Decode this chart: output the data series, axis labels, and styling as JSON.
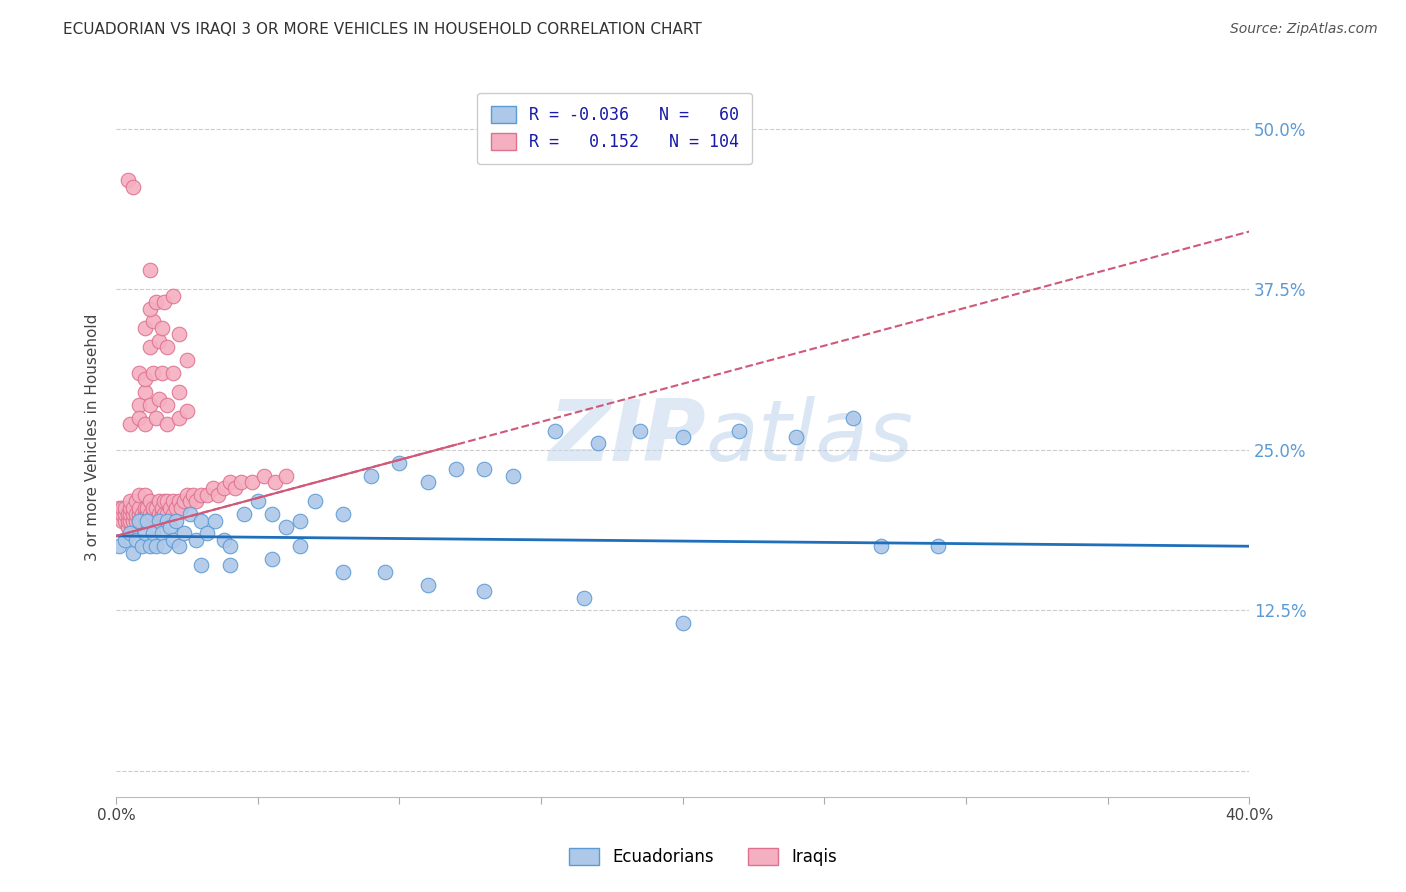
{
  "title": "ECUADORIAN VS IRAQI 3 OR MORE VEHICLES IN HOUSEHOLD CORRELATION CHART",
  "source": "Source: ZipAtlas.com",
  "ylabel": "3 or more Vehicles in Household",
  "xlim": [
    0.0,
    0.4
  ],
  "ylim": [
    -0.02,
    0.54
  ],
  "ytick_vals": [
    0.125,
    0.25,
    0.375,
    0.5
  ],
  "ytick_labels": [
    "12.5%",
    "25.0%",
    "37.5%",
    "50.0%"
  ],
  "watermark": "ZIPatlas",
  "blue_line_color": "#1f6fba",
  "pink_line_color": "#d05878",
  "blue_scatter_color": "#adc8e8",
  "blue_scatter_edge": "#5b9bd5",
  "pink_scatter_color": "#f4b0c0",
  "pink_scatter_edge": "#e07090",
  "ecuadorian_x": [
    0.001,
    0.003,
    0.005,
    0.006,
    0.007,
    0.008,
    0.009,
    0.01,
    0.011,
    0.012,
    0.013,
    0.014,
    0.015,
    0.016,
    0.017,
    0.018,
    0.019,
    0.02,
    0.021,
    0.022,
    0.024,
    0.026,
    0.028,
    0.03,
    0.032,
    0.035,
    0.038,
    0.04,
    0.045,
    0.05,
    0.055,
    0.06,
    0.065,
    0.07,
    0.08,
    0.09,
    0.1,
    0.11,
    0.12,
    0.13,
    0.14,
    0.155,
    0.17,
    0.185,
    0.2,
    0.22,
    0.24,
    0.26,
    0.27,
    0.29,
    0.03,
    0.04,
    0.055,
    0.065,
    0.08,
    0.095,
    0.11,
    0.13,
    0.165,
    0.2
  ],
  "ecuadorian_y": [
    0.175,
    0.18,
    0.185,
    0.17,
    0.18,
    0.195,
    0.175,
    0.185,
    0.195,
    0.175,
    0.185,
    0.175,
    0.195,
    0.185,
    0.175,
    0.195,
    0.19,
    0.18,
    0.195,
    0.175,
    0.185,
    0.2,
    0.18,
    0.195,
    0.185,
    0.195,
    0.18,
    0.175,
    0.2,
    0.21,
    0.2,
    0.19,
    0.195,
    0.21,
    0.2,
    0.23,
    0.24,
    0.225,
    0.235,
    0.235,
    0.23,
    0.265,
    0.255,
    0.265,
    0.26,
    0.265,
    0.26,
    0.275,
    0.175,
    0.175,
    0.16,
    0.16,
    0.165,
    0.175,
    0.155,
    0.155,
    0.145,
    0.14,
    0.135,
    0.115
  ],
  "iraqi_x": [
    0.001,
    0.001,
    0.002,
    0.002,
    0.002,
    0.003,
    0.003,
    0.003,
    0.004,
    0.004,
    0.004,
    0.005,
    0.005,
    0.005,
    0.005,
    0.006,
    0.006,
    0.006,
    0.007,
    0.007,
    0.007,
    0.008,
    0.008,
    0.008,
    0.008,
    0.009,
    0.009,
    0.01,
    0.01,
    0.01,
    0.01,
    0.011,
    0.011,
    0.012,
    0.012,
    0.012,
    0.013,
    0.013,
    0.014,
    0.014,
    0.015,
    0.015,
    0.016,
    0.016,
    0.017,
    0.017,
    0.018,
    0.018,
    0.019,
    0.02,
    0.02,
    0.021,
    0.022,
    0.023,
    0.024,
    0.025,
    0.026,
    0.027,
    0.028,
    0.03,
    0.032,
    0.034,
    0.036,
    0.038,
    0.04,
    0.042,
    0.044,
    0.048,
    0.052,
    0.056,
    0.06,
    0.008,
    0.01,
    0.012,
    0.015,
    0.018,
    0.022,
    0.008,
    0.01,
    0.013,
    0.016,
    0.02,
    0.025,
    0.012,
    0.015,
    0.018,
    0.022,
    0.01,
    0.013,
    0.016,
    0.012,
    0.014,
    0.017,
    0.02,
    0.005,
    0.008,
    0.01,
    0.014,
    0.018,
    0.022,
    0.025,
    0.004,
    0.006,
    0.012
  ],
  "iraqi_y": [
    0.2,
    0.205,
    0.195,
    0.2,
    0.205,
    0.195,
    0.2,
    0.205,
    0.19,
    0.195,
    0.2,
    0.195,
    0.2,
    0.205,
    0.21,
    0.195,
    0.2,
    0.205,
    0.195,
    0.2,
    0.21,
    0.195,
    0.2,
    0.205,
    0.215,
    0.195,
    0.2,
    0.195,
    0.2,
    0.205,
    0.215,
    0.2,
    0.205,
    0.195,
    0.2,
    0.21,
    0.2,
    0.205,
    0.195,
    0.205,
    0.2,
    0.21,
    0.2,
    0.205,
    0.2,
    0.21,
    0.2,
    0.21,
    0.205,
    0.2,
    0.21,
    0.205,
    0.21,
    0.205,
    0.21,
    0.215,
    0.21,
    0.215,
    0.21,
    0.215,
    0.215,
    0.22,
    0.215,
    0.22,
    0.225,
    0.22,
    0.225,
    0.225,
    0.23,
    0.225,
    0.23,
    0.285,
    0.295,
    0.285,
    0.29,
    0.285,
    0.295,
    0.31,
    0.305,
    0.31,
    0.31,
    0.31,
    0.32,
    0.33,
    0.335,
    0.33,
    0.34,
    0.345,
    0.35,
    0.345,
    0.36,
    0.365,
    0.365,
    0.37,
    0.27,
    0.275,
    0.27,
    0.275,
    0.27,
    0.275,
    0.28,
    0.46,
    0.455,
    0.39
  ],
  "blue_line_x0": 0.0,
  "blue_line_x1": 0.4,
  "blue_line_y0": 0.183,
  "blue_line_y1": 0.175,
  "pink_line_x0": 0.0,
  "pink_line_x1": 0.4,
  "pink_line_y0": 0.183,
  "pink_line_y1": 0.42
}
